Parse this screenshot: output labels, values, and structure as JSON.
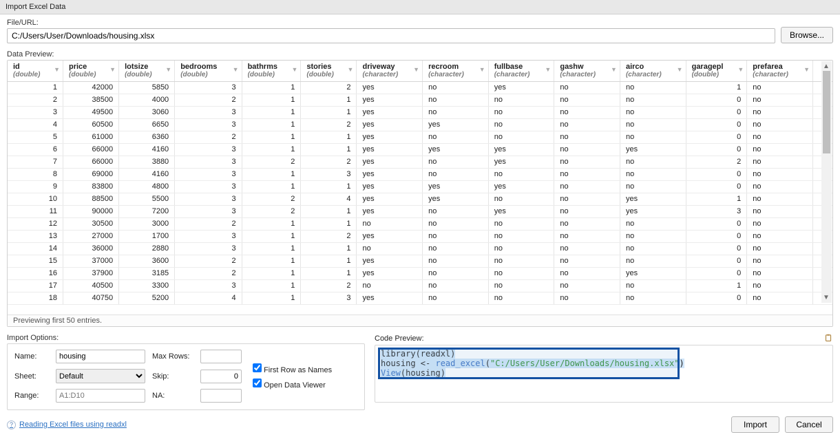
{
  "window": {
    "title": "Import Excel Data"
  },
  "fileurl": {
    "label": "File/URL:",
    "value": "C:/Users/User/Downloads/housing.xlsx",
    "browse": "Browse..."
  },
  "preview": {
    "label": "Data Preview:",
    "status": "Previewing first 50 entries.",
    "columns": [
      {
        "name": "id",
        "type": "(double)",
        "kind": "num"
      },
      {
        "name": "price",
        "type": "(double)",
        "kind": "num"
      },
      {
        "name": "lotsize",
        "type": "(double)",
        "kind": "num"
      },
      {
        "name": "bedrooms",
        "type": "(double)",
        "kind": "num"
      },
      {
        "name": "bathrms",
        "type": "(double)",
        "kind": "num"
      },
      {
        "name": "stories",
        "type": "(double)",
        "kind": "num"
      },
      {
        "name": "driveway",
        "type": "(character)",
        "kind": "chr"
      },
      {
        "name": "recroom",
        "type": "(character)",
        "kind": "chr"
      },
      {
        "name": "fullbase",
        "type": "(character)",
        "kind": "chr"
      },
      {
        "name": "gashw",
        "type": "(character)",
        "kind": "chr"
      },
      {
        "name": "airco",
        "type": "(character)",
        "kind": "chr"
      },
      {
        "name": "garagepl",
        "type": "(double)",
        "kind": "num"
      },
      {
        "name": "prefarea",
        "type": "(character)",
        "kind": "chr"
      }
    ],
    "rows": [
      [
        1,
        42000,
        5850,
        3,
        1,
        2,
        "yes",
        "no",
        "yes",
        "no",
        "no",
        1,
        "no"
      ],
      [
        2,
        38500,
        4000,
        2,
        1,
        1,
        "yes",
        "no",
        "no",
        "no",
        "no",
        0,
        "no"
      ],
      [
        3,
        49500,
        3060,
        3,
        1,
        1,
        "yes",
        "no",
        "no",
        "no",
        "no",
        0,
        "no"
      ],
      [
        4,
        60500,
        6650,
        3,
        1,
        2,
        "yes",
        "yes",
        "no",
        "no",
        "no",
        0,
        "no"
      ],
      [
        5,
        61000,
        6360,
        2,
        1,
        1,
        "yes",
        "no",
        "no",
        "no",
        "no",
        0,
        "no"
      ],
      [
        6,
        66000,
        4160,
        3,
        1,
        1,
        "yes",
        "yes",
        "yes",
        "no",
        "yes",
        0,
        "no"
      ],
      [
        7,
        66000,
        3880,
        3,
        2,
        2,
        "yes",
        "no",
        "yes",
        "no",
        "no",
        2,
        "no"
      ],
      [
        8,
        69000,
        4160,
        3,
        1,
        3,
        "yes",
        "no",
        "no",
        "no",
        "no",
        0,
        "no"
      ],
      [
        9,
        83800,
        4800,
        3,
        1,
        1,
        "yes",
        "yes",
        "yes",
        "no",
        "no",
        0,
        "no"
      ],
      [
        10,
        88500,
        5500,
        3,
        2,
        4,
        "yes",
        "yes",
        "no",
        "no",
        "yes",
        1,
        "no"
      ],
      [
        11,
        90000,
        7200,
        3,
        2,
        1,
        "yes",
        "no",
        "yes",
        "no",
        "yes",
        3,
        "no"
      ],
      [
        12,
        30500,
        3000,
        2,
        1,
        1,
        "no",
        "no",
        "no",
        "no",
        "no",
        0,
        "no"
      ],
      [
        13,
        27000,
        1700,
        3,
        1,
        2,
        "yes",
        "no",
        "no",
        "no",
        "no",
        0,
        "no"
      ],
      [
        14,
        36000,
        2880,
        3,
        1,
        1,
        "no",
        "no",
        "no",
        "no",
        "no",
        0,
        "no"
      ],
      [
        15,
        37000,
        3600,
        2,
        1,
        1,
        "yes",
        "no",
        "no",
        "no",
        "no",
        0,
        "no"
      ],
      [
        16,
        37900,
        3185,
        2,
        1,
        1,
        "yes",
        "no",
        "no",
        "no",
        "yes",
        0,
        "no"
      ],
      [
        17,
        40500,
        3300,
        3,
        1,
        2,
        "no",
        "no",
        "no",
        "no",
        "no",
        1,
        "no"
      ],
      [
        18,
        40750,
        5200,
        4,
        1,
        3,
        "yes",
        "no",
        "no",
        "no",
        "no",
        0,
        "no"
      ]
    ]
  },
  "options": {
    "label": "Import Options:",
    "name_label": "Name:",
    "name_value": "housing",
    "sheet_label": "Sheet:",
    "sheet_value": "Default",
    "range_label": "Range:",
    "range_placeholder": "A1:D10",
    "maxrows_label": "Max Rows:",
    "maxrows_value": "",
    "skip_label": "Skip:",
    "skip_value": "0",
    "na_label": "NA:",
    "na_value": "",
    "firstrow_label": "First Row as Names",
    "firstrow_checked": true,
    "viewer_label": "Open Data Viewer",
    "viewer_checked": true
  },
  "code": {
    "label": "Code Preview:",
    "lines": [
      {
        "plain": "library(readxl)"
      },
      {
        "prefix": "housing <- ",
        "fn": "read_excel",
        "open": "(",
        "str": "\"C:/Users/User/Downloads/housing.xlsx\"",
        "close": ")"
      },
      {
        "fn": "View",
        "open": "(",
        "arg": "housing",
        "close": ")"
      }
    ]
  },
  "footer": {
    "help": "Reading Excel files using readxl",
    "import": "Import",
    "cancel": "Cancel"
  },
  "colors": {
    "highlight_border": "#1452a3",
    "selection_bg": "#cfe4f8",
    "link": "#2a70c2"
  }
}
